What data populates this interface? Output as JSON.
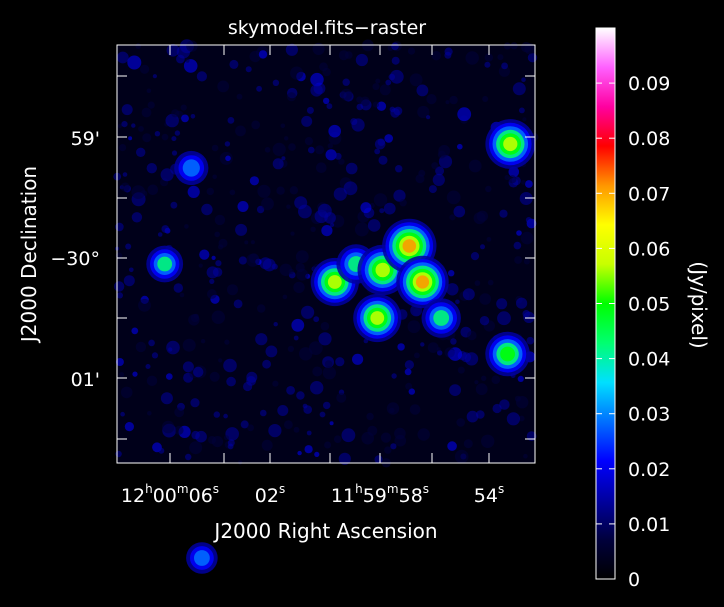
{
  "chart_data": {
    "type": "heatmap",
    "title": "skymodel.fits−raster",
    "xlabel": "J2000 Right Ascension",
    "ylabel": "J2000 Declination",
    "x_ticks": [
      {
        "h": "12",
        "m": "00",
        "s": "06"
      },
      {
        "s": "02"
      },
      {
        "h": "11",
        "m": "59",
        "s": "58"
      },
      {
        "s": "54"
      }
    ],
    "y_ticks": [
      "59'",
      "−30°",
      "01'"
    ],
    "colorbar": {
      "label": "(Jy/pixel)",
      "ticks": [
        "0",
        "0.01",
        "0.02",
        "0.03",
        "0.04",
        "0.05",
        "0.06",
        "0.07",
        "0.08",
        "0.09"
      ],
      "range": [
        0,
        0.1
      ],
      "colormap": [
        "#000000",
        "#00003c",
        "#0000a0",
        "#0000ff",
        "#0070ff",
        "#00e0ff",
        "#00ff70",
        "#00ff00",
        "#c8ff00",
        "#ffff00",
        "#ff9600",
        "#ff0000",
        "#ff00a0",
        "#ff60ff",
        "#ffffff"
      ]
    },
    "features": [
      {
        "ra_s": 59.8,
        "dec_arcmin": -0.2,
        "peak": 0.062
      },
      {
        "ra_s": 59.0,
        "dec_arcmin": -0.05,
        "peak": 0.045
      },
      {
        "ra_s": 58.2,
        "dec_arcmin": -0.5,
        "peak": 0.062
      },
      {
        "ra_s": 58.0,
        "dec_arcmin": -0.1,
        "peak": 0.066
      },
      {
        "ra_s": 57.0,
        "dec_arcmin": 0.1,
        "peak": 0.074
      },
      {
        "ra_s": 56.5,
        "dec_arcmin": -0.2,
        "peak": 0.07
      },
      {
        "ra_s": 55.8,
        "dec_arcmin": -0.5,
        "peak": 0.045
      },
      {
        "ra_s": 53.2,
        "dec_arcmin": 0.95,
        "peak": 0.065
      },
      {
        "ra_s": 53.3,
        "dec_arcmin": -0.8,
        "peak": 0.055
      },
      {
        "ra_s": 66.2,
        "dec_arcmin": -0.05,
        "peak": 0.04
      },
      {
        "ra_s": 65.2,
        "dec_arcmin": 0.75,
        "peak": 0.035
      },
      {
        "ra_s": 64.8,
        "dec_arcmin": -2.5,
        "peak": 0.03
      }
    ]
  }
}
